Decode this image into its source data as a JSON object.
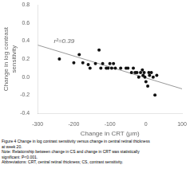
{
  "chart_data": {
    "type": "scatter",
    "title": "",
    "xlabel": "Change in CRT (μm)",
    "ylabel": "Change in log contrast\nsensitivity",
    "xlim": [
      -300,
      100
    ],
    "ylim": [
      -0.4,
      0.8
    ],
    "xticks": [
      -300,
      -200,
      -100,
      0,
      100
    ],
    "yticks": [
      -0.4,
      -0.2,
      {
        "value": 0.0,
        "label": "0.0"
      },
      0.2,
      0.4,
      0.6,
      0.8
    ],
    "grid": false,
    "series": [
      {
        "type": "scatter",
        "color": "#111111",
        "x": [
          -240,
          -200,
          -185,
          -175,
          -160,
          -155,
          -140,
          -130,
          -125,
          -120,
          -110,
          -105,
          -100,
          -95,
          -90,
          -85,
          -70,
          -55,
          -50,
          -40,
          -35,
          -30,
          -25,
          -20,
          -15,
          -10,
          -8,
          -5,
          -3,
          0,
          5,
          8,
          10,
          15,
          20,
          25,
          30
        ],
        "values": [
          0.2,
          0.16,
          0.25,
          0.16,
          0.14,
          0.1,
          0.15,
          0.3,
          0.1,
          0.15,
          0.1,
          0.1,
          0.15,
          0.1,
          0.15,
          0.1,
          0.1,
          0.1,
          0.1,
          0.05,
          0.1,
          0.05,
          0.05,
          0.0,
          0.05,
          0.08,
          0.02,
          0.05,
          0.0,
          -0.05,
          -0.1,
          0.05,
          0.02,
          0.05,
          0.0,
          -0.2,
          0.02
        ]
      },
      {
        "type": "line",
        "color": "#999999",
        "x": [
          -300,
          100
        ],
        "values": [
          0.355,
          -0.13
        ]
      }
    ],
    "annotations": [
      {
        "text": "r²=0.39",
        "x": -255,
        "y": 0.375
      }
    ],
    "caption": [
      "Figure 4 Change in log contrast sensitivity versus change in central retinal thickness",
      "at week 20.",
      "Note: Relationship between change in CS and change in CRT was statistically",
      "significant: P<0.001.",
      "Abbreviations: CRT, central retinal thickness; CS, contrast sensitivity."
    ]
  }
}
